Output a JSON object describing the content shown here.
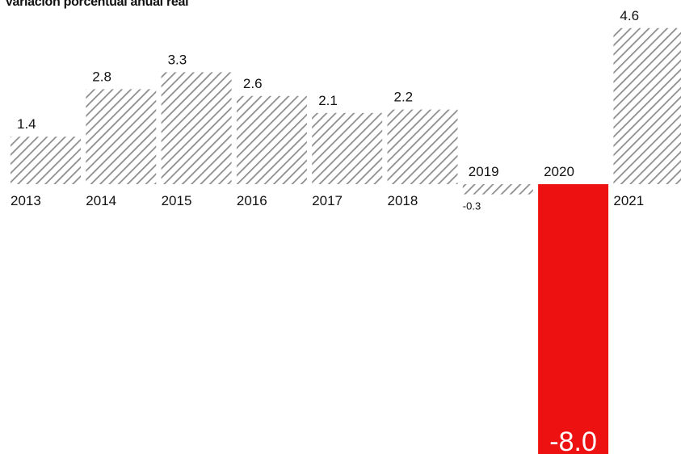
{
  "chart_data": {
    "type": "bar",
    "title": "Variación porcentual anual real",
    "categories": [
      "2013",
      "2014",
      "2015",
      "2016",
      "2017",
      "2018",
      "2019",
      "2020",
      "2021"
    ],
    "values": [
      1.4,
      2.8,
      3.3,
      2.6,
      2.1,
      2.2,
      -0.3,
      -8.0,
      4.6
    ],
    "value_labels": [
      "1.4",
      "2.8",
      "3.3",
      "2.6",
      "2.1",
      "2.2",
      "-0.3",
      "-8.0",
      "4.6"
    ],
    "highlight_category": "2020",
    "highlight_color": "#ee1111",
    "bar_fill": "hatched-gray",
    "ylim": [
      -8.0,
      4.6
    ],
    "grid": false,
    "xlabel": "",
    "ylabel": ""
  }
}
